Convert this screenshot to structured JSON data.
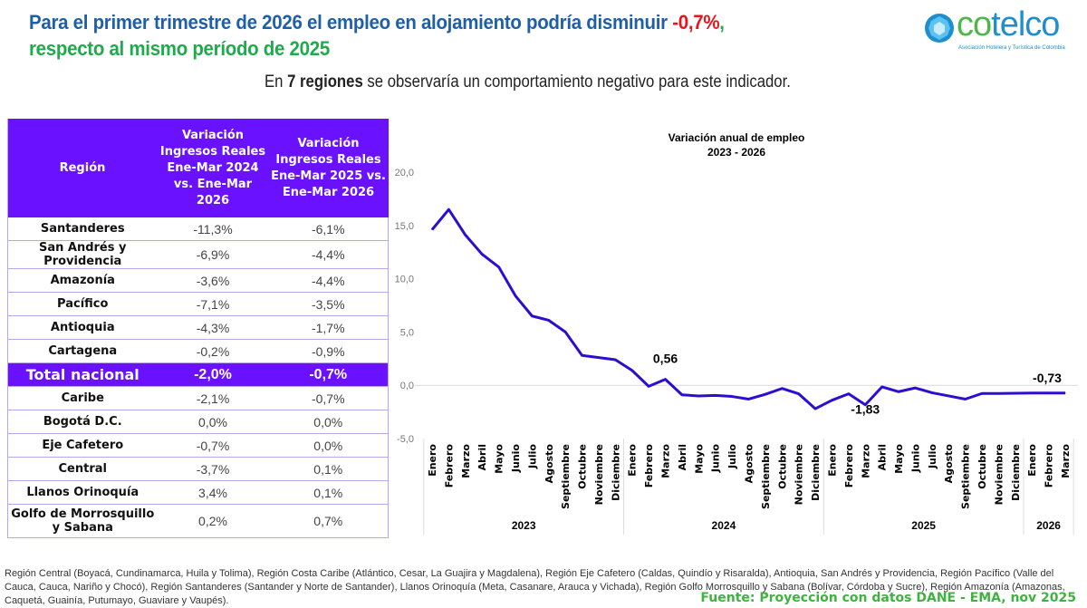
{
  "header": {
    "title_part1": "Para el primer trimestre de 2026 el empleo en alojamiento podría disminuir ",
    "title_highlight": "-0,7%",
    "title_comma": ",",
    "title_line2": "respecto al mismo período de 2025",
    "subtitle_pre": "En ",
    "subtitle_bold": "7 regiones",
    "subtitle_post": " se observaría un comportamiento negativo para este indicador."
  },
  "logo": {
    "brand": "cotelco",
    "tagline": "Asociación Hotelera y Turística de Colombia"
  },
  "colors": {
    "header_purple": "#6a11ff",
    "line": "#2a0fd0",
    "title_blue": "#1f5fa8",
    "title_green": "#1faa4b",
    "highlight_red": "#e8141c",
    "source_green": "#3fb33f"
  },
  "table": {
    "headers": [
      "Región",
      "Variación Ingresos Reales Ene-Mar 2024 vs. Ene-Mar 2026",
      "Variación Ingresos Reales Ene-Mar 2025 vs. Ene-Mar 2026"
    ],
    "rows": [
      {
        "region": "Santanderes",
        "v2024": "-11,3%",
        "v2025": "-6,1%"
      },
      {
        "region": "San Andrés y Providencia",
        "v2024": "-6,9%",
        "v2025": "-4,4%"
      },
      {
        "region": "Amazonía",
        "v2024": "-3,6%",
        "v2025": "-4,4%"
      },
      {
        "region": "Pacífico",
        "v2024": "-7,1%",
        "v2025": "-3,5%"
      },
      {
        "region": "Antioquia",
        "v2024": "-4,3%",
        "v2025": "-1,7%"
      },
      {
        "region": "Cartagena",
        "v2024": "-0,2%",
        "v2025": "-0,9%"
      },
      {
        "region": "Total nacional",
        "v2024": "-2,0%",
        "v2025": "-0,7%",
        "total": true
      },
      {
        "region": "Caribe",
        "v2024": "-2,1%",
        "v2025": "-0,7%"
      },
      {
        "region": "Bogotá D.C.",
        "v2024": "0,0%",
        "v2025": "0,0%"
      },
      {
        "region": "Eje Cafetero",
        "v2024": "-0,7%",
        "v2025": "0,0%"
      },
      {
        "region": "Central",
        "v2024": "-3,7%",
        "v2025": "0,1%"
      },
      {
        "region": "Llanos Orinoquía",
        "v2024": "3,4%",
        "v2025": "0,1%"
      },
      {
        "region": "Golfo de Morrosquillo y Sabana",
        "v2024": "0,2%",
        "v2025": "0,7%"
      }
    ]
  },
  "chart_data": {
    "type": "line",
    "title": "Variación anual de empleo",
    "subtitle": "2023 - 2026",
    "ylim": [
      -5,
      20
    ],
    "yticks": [
      "20,0",
      "15,0",
      "10,0",
      "5,0",
      "0,0",
      "-5,0"
    ],
    "ytick_values": [
      20,
      15,
      10,
      5,
      0,
      -5
    ],
    "grid": false,
    "years": [
      {
        "label": "2023",
        "months": 12
      },
      {
        "label": "2024",
        "months": 12
      },
      {
        "label": "2025",
        "months": 12
      },
      {
        "label": "2026",
        "months": 3
      }
    ],
    "months": [
      "Enero",
      "Febrero",
      "Marzo",
      "Abril",
      "Mayo",
      "Junio",
      "Julio",
      "Agosto",
      "Septiembre",
      "Octubre",
      "Noviembre",
      "Diciembre",
      "Enero",
      "Febrero",
      "Marzo",
      "Abril",
      "Mayo",
      "Junio",
      "Julio",
      "Agosto",
      "Septiembre",
      "Octubre",
      "Noviembre",
      "Diciembre",
      "Enero",
      "Febrero",
      "Marzo",
      "Abril",
      "Mayo",
      "Junio",
      "Julio",
      "Agosto",
      "Septiembre",
      "Octubre",
      "Noviembre",
      "Diciembre",
      "Enero",
      "Febrero",
      "Marzo"
    ],
    "values": [
      14.6,
      16.5,
      14.1,
      12.3,
      11.1,
      8.4,
      6.5,
      6.1,
      5.0,
      2.8,
      2.6,
      2.4,
      1.4,
      -0.1,
      0.56,
      -0.9,
      -1.0,
      -0.95,
      -1.05,
      -1.3,
      -0.85,
      -0.3,
      -0.8,
      -2.2,
      -1.4,
      -0.8,
      -1.83,
      -0.15,
      -0.6,
      -0.25,
      -0.7,
      -1.0,
      -1.3,
      -0.77,
      -0.77,
      -0.75,
      -0.73,
      -0.73,
      -0.73
    ],
    "data_labels": [
      {
        "index": 14,
        "text": "0,56"
      },
      {
        "index": 26,
        "text": "-1,83"
      },
      {
        "index": 38,
        "text": "-0,73"
      }
    ]
  },
  "footer": {
    "note": "Región Central (Boyacá, Cundinamarca, Huila y Tolima), Región Costa Caribe (Atlántico, Cesar, La Guajira y Magdalena), Región Eje Cafetero (Caldas, Quindío y Risaralda), Antioquia, San Andrés y Providencia, Región Pacífico (Valle del Cauca, Cauca, Nariño y Chocó), Región Santanderes (Santander y Norte de Santander), Llanos Orinoquía (Meta, Casanare, Arauca y Vichada), Región Golfo Morrosquillo y Sabana (Bolívar, Córdoba y Sucre), Región Amazonía (Amazonas, Caquetá, Guainía, Putumayo, Guaviare y Vaupés).",
    "source": "Fuente: Proyección con datos DANE - EMA, nov 2025"
  }
}
